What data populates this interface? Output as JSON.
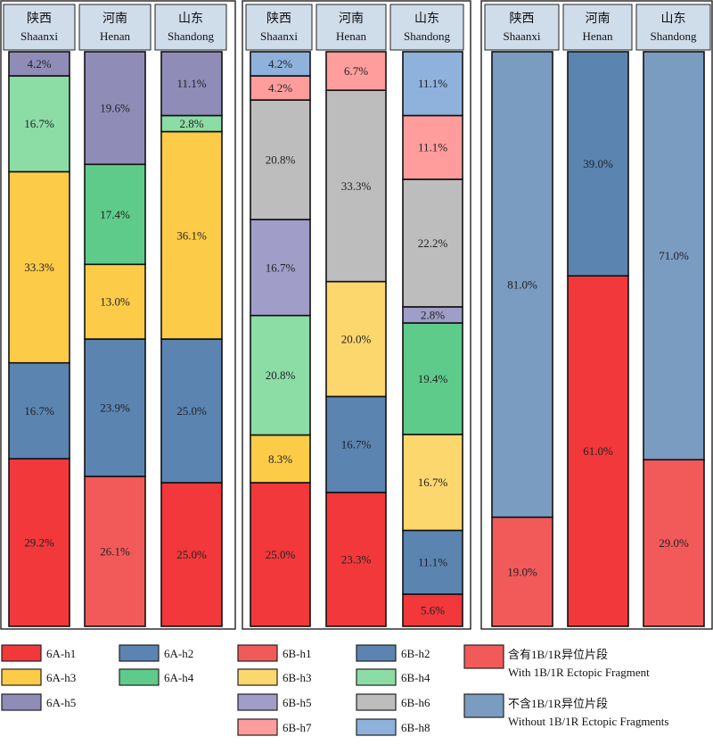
{
  "colors": {
    "6A-h1": "#f2383a",
    "6A-h2": "#5b84b1",
    "6A-h3": "#fccb48",
    "6A-h4": "#5ecb8b",
    "6A-h5": "#8f8cb8",
    "6B-h1": "#f25a5a",
    "6B-h2": "#5b84b1",
    "6B-h3": "#fcd76e",
    "6B-h4": "#8cdca6",
    "6B-h5": "#a09dc8",
    "6B-h6": "#bdbdbd",
    "6B-h7": "#ff9d9d",
    "6B-h8": "#8fb2dc",
    "with": "#f25a5a",
    "without": "#7a9cc0",
    "header_fill": "#cfdcea"
  },
  "chart_data": [
    {
      "type": "bar",
      "stacked": true,
      "normalized": true,
      "categories_zh": [
        "陕西",
        "河南",
        "山东"
      ],
      "categories": [
        "Shaanxi",
        "Henan",
        "Shandong"
      ],
      "series": [
        {
          "name": "6A-h1",
          "values": [
            29.2,
            26.1,
            25.0
          ],
          "labels": [
            "29.2%",
            "26.1%",
            "25.0%"
          ]
        },
        {
          "name": "6A-h2",
          "values": [
            16.7,
            23.9,
            25.0
          ],
          "labels": [
            "16.7%",
            "23.9%",
            "25.0%"
          ]
        },
        {
          "name": "6A-h3",
          "values": [
            33.3,
            13.0,
            36.1
          ],
          "labels": [
            "33.3%",
            "13.0%",
            "36.1%"
          ]
        },
        {
          "name": "6A-h4",
          "values": [
            16.7,
            17.4,
            2.8
          ],
          "labels": [
            "16.7%",
            "17.4%",
            "2.8%"
          ]
        },
        {
          "name": "6A-h5",
          "values": [
            4.2,
            19.6,
            11.1
          ],
          "labels": [
            "4.2%",
            "19.6%",
            "11.1%"
          ]
        }
      ],
      "segment_colors": [
        [
          "6A-h1",
          "6A-h2",
          "6A-h3",
          "6B-h4",
          "6A-h5"
        ],
        [
          "6B-h1",
          "6A-h2",
          "6A-h3",
          "6A-h4",
          "6A-h5"
        ],
        [
          "6A-h1",
          "6A-h2",
          "6A-h3",
          "6B-h4",
          "6A-h5"
        ]
      ]
    },
    {
      "type": "bar",
      "stacked": true,
      "normalized": true,
      "categories_zh": [
        "陕西",
        "河南",
        "山东"
      ],
      "categories": [
        "Shaanxi",
        "Henan",
        "Shandong"
      ],
      "series": [
        {
          "name": "6B-h1",
          "values": [
            25.0,
            23.3,
            5.6
          ],
          "labels": [
            "25.0%",
            "23.3%",
            "5.6%"
          ]
        },
        {
          "name": "6B-h2",
          "values": [
            0,
            16.7,
            11.1
          ],
          "labels": [
            "",
            "16.7%",
            "11.1%"
          ]
        },
        {
          "name": "6B-h3",
          "values": [
            8.3,
            20.0,
            16.7
          ],
          "labels": [
            "8.3%",
            "20.0%",
            "16.7%"
          ]
        },
        {
          "name": "6B-h4",
          "values": [
            20.8,
            0,
            19.4
          ],
          "labels": [
            "20.8%",
            "",
            "19.4%"
          ]
        },
        {
          "name": "6B-h5",
          "values": [
            16.7,
            0,
            2.8
          ],
          "labels": [
            "16.7%",
            "",
            "2.8%"
          ]
        },
        {
          "name": "6B-h6",
          "values": [
            20.8,
            33.3,
            22.2
          ],
          "labels": [
            "20.8%",
            "33.3%",
            "22.2%"
          ]
        },
        {
          "name": "6B-h7",
          "values": [
            4.2,
            6.7,
            11.1
          ],
          "labels": [
            "4.2%",
            "6.7%",
            "11.1%"
          ]
        },
        {
          "name": "6B-h8",
          "values": [
            4.2,
            0,
            11.1
          ],
          "labels": [
            "4.2%",
            "",
            "11.1%"
          ]
        }
      ],
      "segment_colors": [
        [
          "6A-h1",
          "6B-h2",
          "6A-h3",
          "6B-h4",
          "6B-h5",
          "6B-h6",
          "6B-h7",
          "6B-h8"
        ],
        [
          "6A-h1",
          "6A-h2",
          "6B-h3",
          "6B-h4",
          "6B-h5",
          "6B-h6",
          "6B-h7",
          "6B-h8"
        ],
        [
          "6A-h1",
          "6B-h2",
          "6B-h3",
          "6A-h4",
          "6B-h5",
          "6B-h6",
          "6B-h7",
          "6B-h8"
        ]
      ]
    },
    {
      "type": "bar",
      "stacked": true,
      "normalized": true,
      "categories_zh": [
        "陕西",
        "河南",
        "山东"
      ],
      "categories": [
        "Shaanxi",
        "Henan",
        "Shandong"
      ],
      "series": [
        {
          "name": "含有1B/1R异位片段 With 1B/1R Ectopic Fragment",
          "values": [
            19.0,
            61.0,
            29.0
          ],
          "labels": [
            "19.0%",
            "61.0%",
            "29.0%"
          ]
        },
        {
          "name": "不含1B/1R异位片段 Without 1B/1R Ectopic Fragments",
          "values": [
            81.0,
            39.0,
            71.0
          ],
          "labels": [
            "81.0%",
            "39.0%",
            "71.0%"
          ]
        }
      ],
      "segment_colors": [
        [
          "with",
          "without"
        ],
        [
          "6A-h1",
          "6A-h2"
        ],
        [
          "with",
          "without"
        ]
      ]
    }
  ],
  "legend": [
    {
      "key": "6A-h1",
      "label": "6A-h1"
    },
    {
      "key": "6A-h2",
      "label": "6A-h2"
    },
    {
      "key": "6A-h3",
      "label": "6A-h3"
    },
    {
      "key": "6A-h4",
      "label": "6A-h4"
    },
    {
      "key": "6A-h5",
      "label": "6A-h5"
    },
    {
      "key": "6B-h1",
      "label": "6B-h1"
    },
    {
      "key": "6B-h2",
      "label": "6B-h2"
    },
    {
      "key": "6B-h3",
      "label": "6B-h3"
    },
    {
      "key": "6B-h4",
      "label": "6B-h4"
    },
    {
      "key": "6B-h5",
      "label": "6B-h5"
    },
    {
      "key": "6B-h6",
      "label": "6B-h6"
    },
    {
      "key": "6B-h7",
      "label": "6B-h7"
    },
    {
      "key": "6B-h8",
      "label": "6B-h8"
    },
    {
      "key": "with",
      "label_zh": "含有1B/1R异位片段",
      "label_en": "With 1B/1R Ectopic Fragment"
    },
    {
      "key": "without",
      "label_zh": "不含1B/1R异位片段",
      "label_en": "Without 1B/1R Ectopic Fragments"
    }
  ]
}
